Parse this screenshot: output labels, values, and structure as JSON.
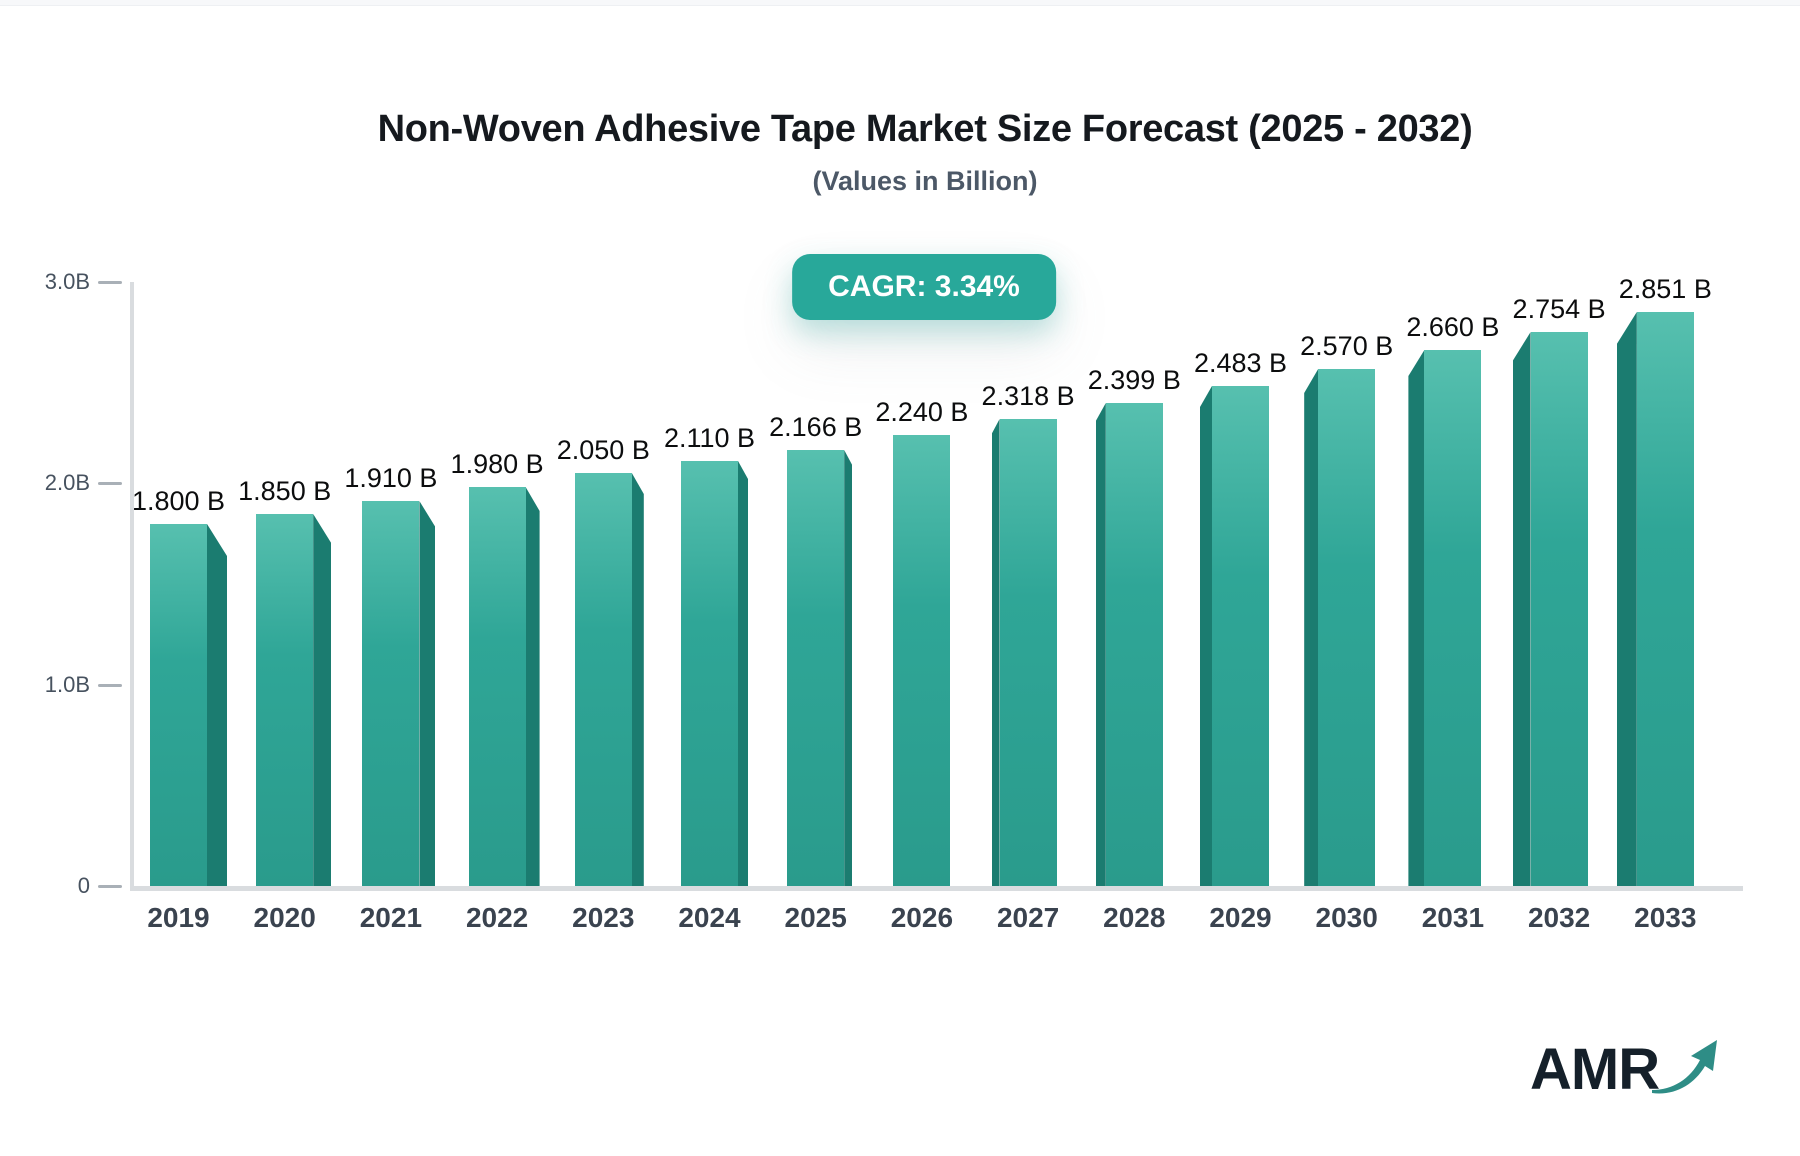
{
  "page": {
    "background": "#ffffff",
    "top_strip_color": "#f7f8fa"
  },
  "header": {
    "title": "Non-Woven Adhesive Tape Market Size Forecast (2025 - 2032)",
    "subtitle": "(Values in Billion)"
  },
  "cagr_badge": {
    "label": "CAGR: 3.34%",
    "background": "#28a89a",
    "text_color": "#ffffff"
  },
  "chart_data": {
    "type": "bar",
    "title": "Non-Woven Adhesive Tape Market Size Forecast (2025 - 2032)",
    "subtitle": "(Values in Billion)",
    "annotation": "CAGR: 3.34%",
    "categories": [
      "2019",
      "2020",
      "2021",
      "2022",
      "2023",
      "2024",
      "2025",
      "2026",
      "2027",
      "2028",
      "2029",
      "2030",
      "2031",
      "2032",
      "2033"
    ],
    "values": [
      1.8,
      1.85,
      1.91,
      1.98,
      2.05,
      2.11,
      2.166,
      2.24,
      2.318,
      2.399,
      2.483,
      2.57,
      2.66,
      2.754,
      2.851
    ],
    "value_labels": [
      "1.800 B",
      "1.850 B",
      "1.910 B",
      "1.980 B",
      "2.050 B",
      "2.110 B",
      "2.166 B",
      "2.240 B",
      "2.318 B",
      "2.399 B",
      "2.483 B",
      "2.570 B",
      "2.660 B",
      "2.754 B",
      "2.851 B"
    ],
    "xlabel": "",
    "ylabel": "",
    "ylim": [
      0,
      3.0
    ],
    "yticks": [
      {
        "label": "0",
        "value": 0
      },
      {
        "label": "1.0B",
        "value": 1
      },
      {
        "label": "2.0B",
        "value": 2
      },
      {
        "label": "3.0B",
        "value": 3
      }
    ],
    "grid": false,
    "legend": null,
    "bar_face_gradient_top": "#57c0af",
    "bar_face_color": "#2fa697",
    "bar_face_gradient_bottom": "#2a9b8c",
    "bar_side_color": "#1b7c70"
  },
  "logo": {
    "text": "AMR",
    "text_color": "#15202a",
    "arrow_color": "#2e8d86",
    "arrow_icon": "growth-arrow-icon"
  }
}
